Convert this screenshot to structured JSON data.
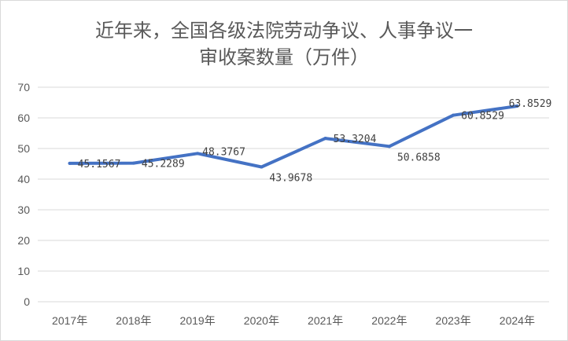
{
  "chart_data": {
    "type": "line",
    "title_lines": [
      "近年来，全国各级法院劳动争议、人事争议一",
      "审收案数量（万件）"
    ],
    "categories": [
      "2017年",
      "2018年",
      "2019年",
      "2020年",
      "2021年",
      "2022年",
      "2023年",
      "2024年"
    ],
    "values": [
      45.1567,
      45.2289,
      48.3767,
      43.9678,
      53.3204,
      50.6858,
      60.8529,
      63.8529
    ],
    "data_labels": [
      "45.1567",
      "45.2289",
      "48.3767",
      "43.9678",
      "53.3204",
      "50.6858",
      "60.8529",
      "63.8529"
    ],
    "y_ticks": [
      "0",
      "10",
      "20",
      "30",
      "40",
      "50",
      "60",
      "70"
    ],
    "ylim": [
      0,
      70
    ],
    "grid": true,
    "legend": "none",
    "line_color": "#4472c4",
    "grid_color": "#d9d9d9"
  }
}
